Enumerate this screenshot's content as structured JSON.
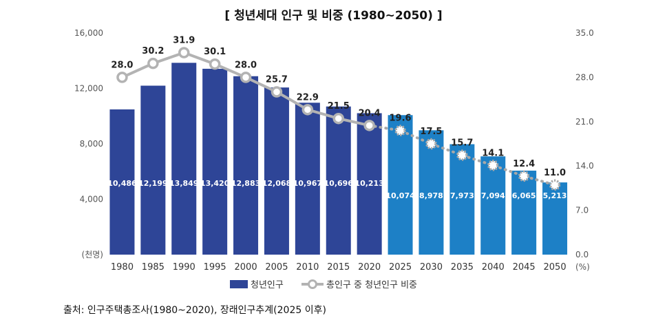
{
  "title": "[ 청년세대 인구 및 비중 (1980~2050) ]",
  "source": "출처:  인구주택총조사(1980~2020),  장래인구추계(2025 이후)",
  "colors": {
    "bar_observed": "#2E4597",
    "bar_projected": "#1D80C6",
    "line": "#B3B3B3",
    "line_dots_projected": "#A8A8A8"
  },
  "chart_data": {
    "type": "bar",
    "categories": [
      "1980",
      "1985",
      "1990",
      "1995",
      "2000",
      "2005",
      "2010",
      "2015",
      "2020",
      "2025",
      "2030",
      "2035",
      "2040",
      "2045",
      "2050"
    ],
    "series": [
      {
        "name": "청년인구",
        "axis": "left",
        "values": [
          10486,
          12199,
          13849,
          13420,
          12883,
          12068,
          10967,
          10696,
          10213,
          10074,
          8978,
          7973,
          7094,
          6065,
          5213
        ],
        "value_labels": [
          "10,486",
          "12,199",
          "13,849",
          "13,420",
          "12,883",
          "12,068",
          "10,967",
          "10,696",
          "10,213",
          "10,074",
          "8,978",
          "7,973",
          "7,094",
          "6,065",
          "5,213"
        ]
      },
      {
        "name": "총인구 중 청년인구 비중",
        "type": "line",
        "axis": "right",
        "values": [
          28.0,
          30.2,
          31.9,
          30.1,
          28.0,
          25.7,
          22.9,
          21.5,
          20.4,
          19.6,
          17.5,
          15.7,
          14.1,
          12.4,
          11.0
        ],
        "value_labels": [
          "28.0",
          "30.2",
          "31.9",
          "30.1",
          "28.0",
          "25.7",
          "22.9",
          "21.5",
          "20.4",
          "19.6",
          "17.5",
          "15.7",
          "14.1",
          "12.4",
          "11.0"
        ]
      }
    ],
    "projection_start_index": 9,
    "left_axis": {
      "unit": "(천명)",
      "ticks": [
        "16,000",
        "12,000",
        "8,000",
        "4,000"
      ],
      "ylim": [
        0,
        16000
      ]
    },
    "right_axis": {
      "unit": "(%)",
      "ticks": [
        "35.0",
        "28.0",
        "21.0",
        "14.0",
        "7.0",
        "0.0"
      ],
      "ylim": [
        0,
        35
      ]
    },
    "grid": false,
    "legend_position": "bottom"
  }
}
